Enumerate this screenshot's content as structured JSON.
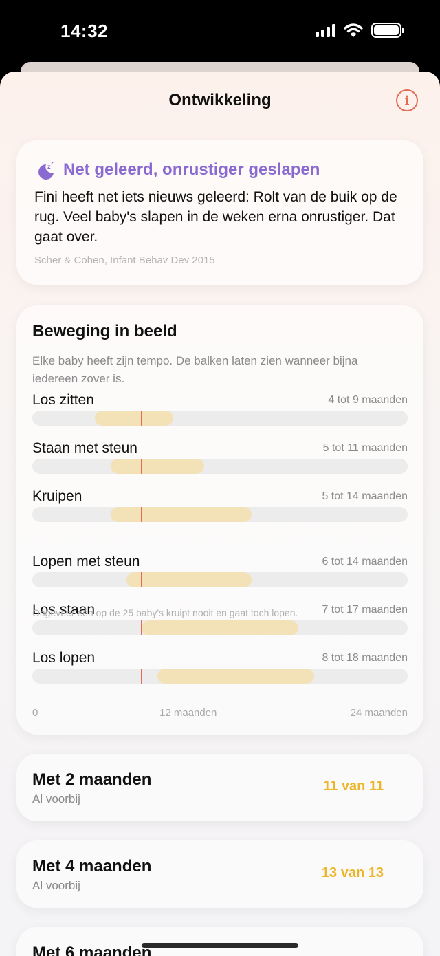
{
  "status": {
    "time": "14:32"
  },
  "nav": {
    "title": "Ontwikkeling",
    "info_icon": "info-circle-icon"
  },
  "tip": {
    "icon": "moon-sleep-icon",
    "title": "Net geleerd, onrustiger geslapen",
    "body": "Fini heeft net iets nieuws geleerd: Rolt van de buik op de rug. Veel baby's slapen in de weken erna onrustiger. Dat gaat over.",
    "source": "Scher & Cohen, Infant Behav Dev 2015"
  },
  "motion": {
    "title": "Beweging in beeld",
    "description": "Elke baby heeft zijn tempo. De balken laten zien wanneer bijna iedereen zover is.",
    "note": "Ongeveer één op de 25 baby's kruipt nooit en gaat toch lopen.",
    "axis_max_months": 24,
    "current_age_months": 7,
    "axis": {
      "start": "0",
      "mid": "12 maanden",
      "end": "24 maanden"
    },
    "milestones": [
      {
        "name": "Los zitten",
        "range_label": "4 tot 9 maanden",
        "from": 4,
        "to": 9
      },
      {
        "name": "Staan met steun",
        "range_label": "5 tot 11 maanden",
        "from": 5,
        "to": 11
      },
      {
        "name": "Kruipen",
        "range_label": "5 tot 14 maanden",
        "from": 5,
        "to": 14
      },
      {
        "name": "Lopen met steun",
        "range_label": "6 tot 14 maanden",
        "from": 6,
        "to": 14
      },
      {
        "name": "Los staan",
        "range_label": "7 tot 17 maanden",
        "from": 7,
        "to": 17
      },
      {
        "name": "Los lopen",
        "range_label": "8 tot 18 maanden",
        "from": 8,
        "to": 18
      }
    ]
  },
  "months": [
    {
      "title": "Met 2 maanden",
      "subtitle": "Al voorbij",
      "count": "11 van 11"
    },
    {
      "title": "Met 4 maanden",
      "subtitle": "Al voorbij",
      "count": "13 van 13"
    },
    {
      "title": "Met 6 maanden",
      "subtitle": "",
      "count": ""
    }
  ],
  "colors": {
    "accent": "#e56b55",
    "tip_title": "#8a6ad0",
    "count": "#ecb62a",
    "band": "#f3e2b8"
  }
}
